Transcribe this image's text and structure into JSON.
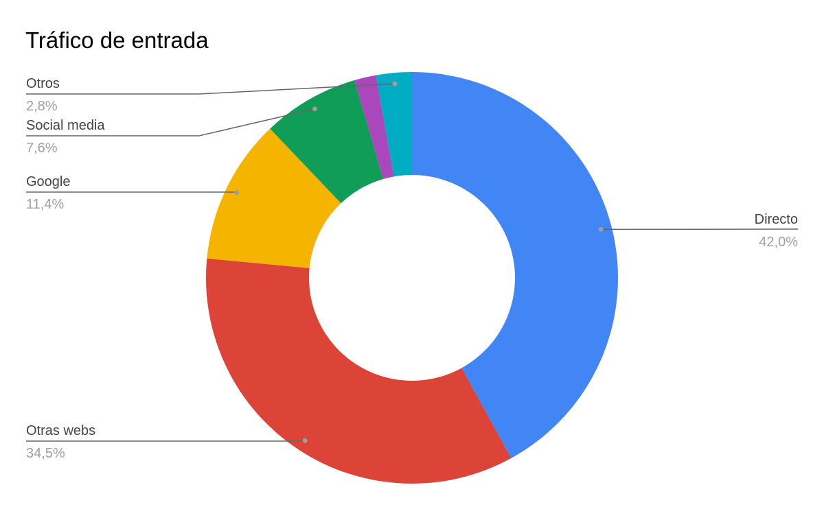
{
  "chart_data": {
    "type": "donut",
    "title": "Tráfico de entrada",
    "categories": [
      "Directo",
      "Otras webs",
      "Google",
      "Social media",
      null,
      "Otros"
    ],
    "values": [
      42.0,
      34.5,
      11.4,
      7.6,
      1.7,
      2.8
    ],
    "value_labels": [
      "42,0%",
      "34,5%",
      "11,4%",
      "7,6%",
      null,
      "2,8%"
    ],
    "colors": [
      "#4285f4",
      "#db4437",
      "#f4b400",
      "#0f9d58",
      "#ab47bc",
      "#00acc1"
    ]
  }
}
